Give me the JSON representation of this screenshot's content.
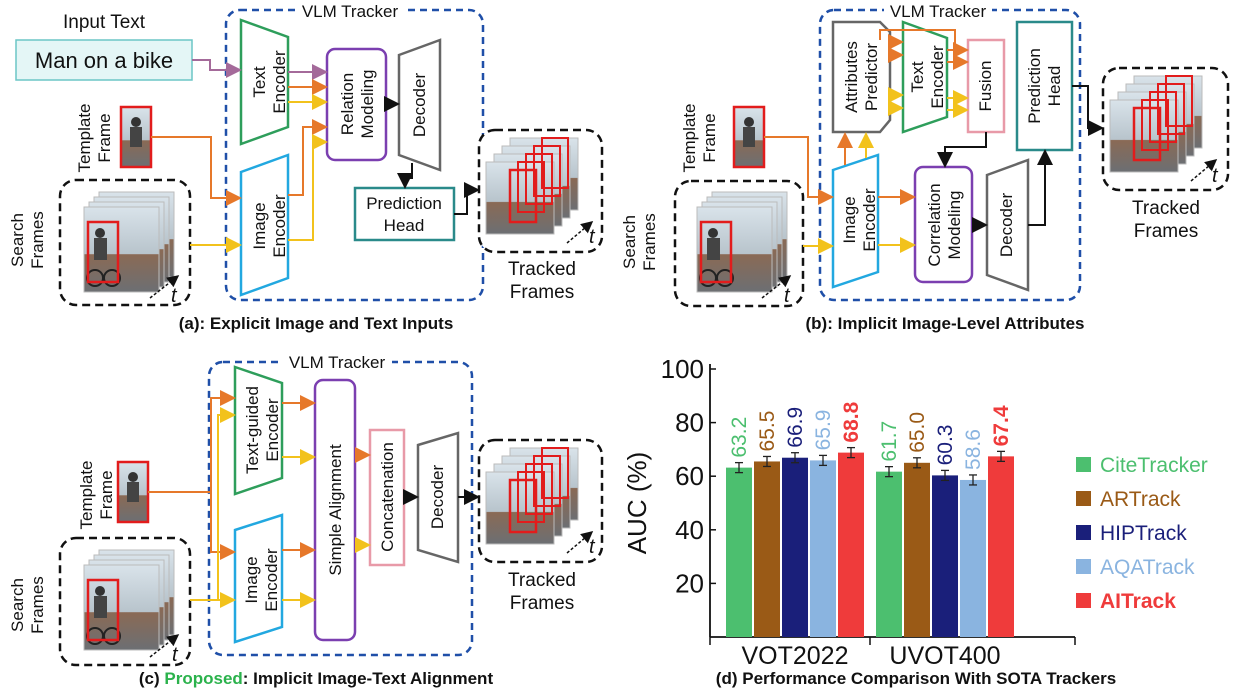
{
  "panels": {
    "a": {
      "input_text_label": "Input Text",
      "input_text_value": "Man on a bike",
      "tracker_title": "VLM Tracker",
      "template_frame": [
        "Template",
        "Frame"
      ],
      "search_frames": [
        "Search",
        "Frames"
      ],
      "t": "t",
      "text_encoder": [
        "Text",
        "Encoder"
      ],
      "image_encoder": [
        "Image",
        "Encoder"
      ],
      "relation_modeling": [
        "Relation",
        "Modeling"
      ],
      "decoder": "Decoder",
      "prediction_head": [
        "Prediction",
        "Head"
      ],
      "tracked_frames": [
        "Tracked",
        "Frames"
      ],
      "caption": "(a): Explicit Image and Text Inputs"
    },
    "b": {
      "tracker_title": "VLM Tracker",
      "template_frame": [
        "Template",
        "Frame"
      ],
      "search_frames": [
        "Search",
        "Frames"
      ],
      "t": "t",
      "attributes_predictor": [
        "Attributes",
        "Predictor"
      ],
      "text_encoder": [
        "Text",
        "Encoder"
      ],
      "fusion": "Fusion",
      "prediction_head": [
        "Prediction",
        "Head"
      ],
      "image_encoder": [
        "Image",
        "Encoder"
      ],
      "correlation_modeling": [
        "Correlation",
        "Modeling"
      ],
      "decoder": "Decoder",
      "tracked_frames": [
        "Tracked",
        "Frames"
      ],
      "caption": "(b): Implicit Image-Level Attributes"
    },
    "c": {
      "tracker_title": "VLM Tracker",
      "template_frame": [
        "Template",
        "Frame"
      ],
      "search_frames": [
        "Search",
        "Frames"
      ],
      "t": "t",
      "text_guided_encoder": [
        "Text-guided",
        "Encoder"
      ],
      "image_encoder": [
        "Image",
        "Encoder"
      ],
      "simple_alignment": "Simple Alignment",
      "concatenation": "Concatenation",
      "decoder": "Decoder",
      "tracked_frames": [
        "Tracked",
        "Frames"
      ],
      "caption_highlight": "Proposed",
      "caption_prefix": "(c) ",
      "caption_rest": ": Implicit Image-Text Alignment"
    },
    "d": {
      "caption": "(d) Performance Comparison With SOTA Trackers"
    }
  },
  "colors": {
    "tracker_border": "#1f4fa8",
    "green": "#2e9e5b",
    "cyan": "#22a8e0",
    "purple": "#7b3fb0",
    "gray": "#666666",
    "teal": "#2a8a8a",
    "pink": "#e89aa8",
    "orange_arrow": "#e6782a",
    "yellow_arrow": "#f2c21c",
    "mauve_arrow": "#a46a9a",
    "highlight_green": "#2bb24c"
  },
  "chart_data": {
    "type": "bar",
    "categories": [
      "VOT2022",
      "UVOT400"
    ],
    "ylabel": "AUC (%)",
    "ylim": [
      0,
      100
    ],
    "yticks": [
      20,
      40,
      60,
      80,
      100
    ],
    "legend_position": "right",
    "series": [
      {
        "name": "CiteTracker",
        "values": [
          63.2,
          61.7
        ],
        "color": "#4cbf6f"
      },
      {
        "name": "ARTrack",
        "values": [
          65.5,
          65.0
        ],
        "color": "#9a5a16"
      },
      {
        "name": "HIPTrack",
        "values": [
          66.9,
          60.3
        ],
        "color": "#1a1f7a"
      },
      {
        "name": "AQATrack",
        "values": [
          65.9,
          58.6
        ],
        "color": "#8ab4e0"
      },
      {
        "name": "AITrack",
        "values": [
          68.8,
          67.4
        ],
        "color": "#ef3b3b",
        "bold": true
      }
    ]
  }
}
